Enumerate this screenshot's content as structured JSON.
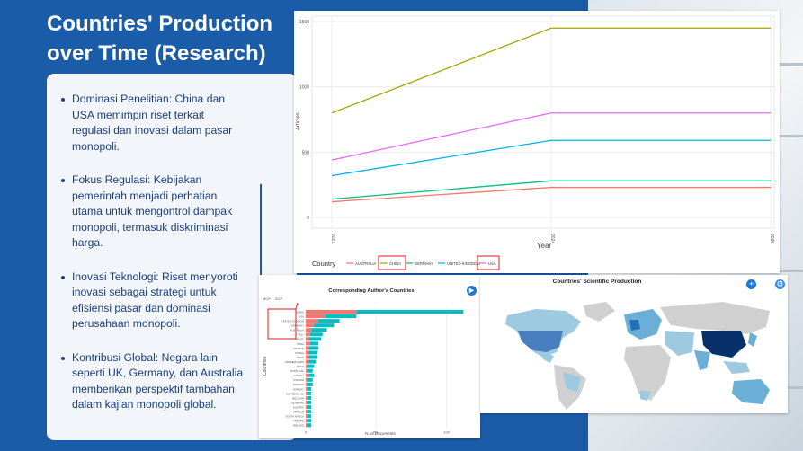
{
  "slide": {
    "title_line1": "Countries' Production",
    "title_line2": "over Time (Research)",
    "bullets": [
      "Dominasi Penelitian: China dan USA memimpin riset terkait regulasi dan inovasi dalam pasar monopoli.",
      "Fokus Regulasi: Kebijakan pemerintah menjadi perhatian utama untuk mengontrol dampak monopoli, termasuk diskriminasi harga.",
      "Inovasi Teknologi: Riset menyoroti inovasi sebagai strategi untuk efisiensi pasar dan dominasi perusahaan monopoli.",
      "Kontribusi Global: Negara lain seperti UK, Germany, dan Australia memberikan perspektif tambahan dalam kajian monopoli global."
    ]
  },
  "colors": {
    "slide_bg": "#1b5ca8",
    "text_dark_blue": "#1b3f7a",
    "highlight_red": "#e31a1c"
  },
  "line_chart": {
    "legend_title": "Country",
    "xlabel": "Year",
    "ylabel": "Articles",
    "x_ticks": [
      "2023",
      "2024",
      "2025"
    ],
    "y_ticks": [
      "0",
      "500",
      "1000",
      "1500"
    ]
  },
  "bar_chart": {
    "title": "Corresponding Author's Countries",
    "xlabel": "N. of Documents",
    "ylabel": "Countries",
    "legend": [
      "MCP",
      "SCP"
    ],
    "x_ticks": [
      "0",
      "50",
      "100"
    ]
  },
  "map": {
    "title": "Countries' Scientific Production"
  },
  "chart_data": [
    {
      "type": "line",
      "title": "",
      "xlabel": "Year",
      "ylabel": "Articles",
      "x": [
        2023,
        2024,
        2025
      ],
      "ylim": [
        0,
        1500
      ],
      "grid": true,
      "legend_position": "bottom",
      "series": [
        {
          "name": "AUSTRALIA",
          "color": "#f8766d",
          "values": [
            120,
            230,
            230
          ]
        },
        {
          "name": "CHINA",
          "color": "#a3a500",
          "values": [
            800,
            1450,
            1450
          ]
        },
        {
          "name": "GERMANY",
          "color": "#00bf7d",
          "values": [
            140,
            280,
            280
          ]
        },
        {
          "name": "UNITED KINGDOM",
          "color": "#00b0f6",
          "values": [
            320,
            590,
            590
          ]
        },
        {
          "name": "USA",
          "color": "#e76bf3",
          "values": [
            440,
            800,
            800
          ]
        }
      ]
    },
    {
      "type": "bar",
      "title": "Corresponding Author's Countries",
      "xlabel": "N. of Documents",
      "ylabel": "Countries",
      "xlim": [
        0,
        115
      ],
      "stacked": true,
      "series_colors": {
        "MCP": "#f8766d",
        "SCP": "#00bfc4"
      },
      "categories": [
        "CHINA",
        "USA",
        "UNITED KINGDOM",
        "GERMANY",
        "AUSTRALIA",
        "ITALY",
        "BRAZIL",
        "INDIA",
        "FRANCE",
        "KOREA",
        "SPAIN",
        "NETHERLANDS",
        "JAPAN",
        "PORTUGAL",
        "CANADA",
        "POLAND",
        "SWEDEN",
        "NORWAY",
        "SWITZERLAND",
        "BELGIUM",
        "DENMARK",
        "AUSTRIA",
        "GREECE",
        "SOUTH AFRICA",
        "FINLAND",
        "IRELAND"
      ],
      "series": [
        {
          "name": "MCP",
          "values": [
            36,
            14,
            9,
            6,
            4,
            3,
            2,
            3,
            2,
            2,
            2,
            2,
            1,
            1,
            2,
            1,
            1,
            1,
            1,
            1,
            1,
            1,
            1,
            1,
            1,
            1
          ]
        },
        {
          "name": "SCP",
          "values": [
            76,
            22,
            15,
            14,
            11,
            9,
            9,
            6,
            7,
            6,
            6,
            5,
            5,
            4,
            4,
            4,
            4,
            3,
            3,
            3,
            3,
            3,
            3,
            3,
            3,
            3
          ]
        }
      ],
      "highlighted_categories": [
        "CHINA",
        "USA",
        "UNITED KINGDOM",
        "GERMANY",
        "AUSTRALIA"
      ]
    }
  ]
}
